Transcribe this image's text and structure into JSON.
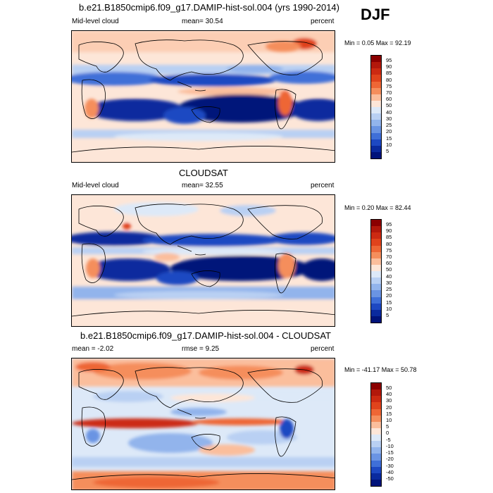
{
  "season": "DJF",
  "panels": [
    {
      "title": "b.e21.B1850cmip6.f09_g17.DAMIP-hist-sol.004 (yrs 1990-2014)",
      "left_label": "Mid-level cloud",
      "stat_label": "mean=  30.54",
      "units": "percent",
      "minmax": "Min =   0.05 Max =  92.19",
      "colorbar_labels": [
        "95",
        "90",
        "85",
        "80",
        "75",
        "70",
        "60",
        "50",
        "40",
        "30",
        "25",
        "20",
        "15",
        "10",
        "5"
      ]
    },
    {
      "title": "CLOUDSAT",
      "left_label": "Mid-level cloud",
      "stat_label": "mean=  32.55",
      "units": "percent",
      "minmax": "Min =   0.20 Max =  82.44",
      "colorbar_labels": [
        "95",
        "90",
        "85",
        "80",
        "75",
        "70",
        "60",
        "50",
        "40",
        "30",
        "25",
        "20",
        "15",
        "10",
        "5"
      ]
    },
    {
      "title": "b.e21.B1850cmip6.f09_g17.DAMIP-hist-sol.004 - CLOUDSAT",
      "left_label": "mean =  -2.02",
      "stat_label": "rmse =   9.25",
      "units": "percent",
      "minmax": "Min = -41.17 Max =  50.78",
      "colorbar_labels": [
        "50",
        "40",
        "30",
        "20",
        "15",
        "10",
        "5",
        "0",
        "-5",
        "-10",
        "-15",
        "-20",
        "-30",
        "-40",
        "-50"
      ]
    }
  ],
  "colors": {
    "cloud_scale": [
      "#8b0000",
      "#b2180b",
      "#cc2a12",
      "#e0431c",
      "#ee6635",
      "#f58e5c",
      "#fbbe9c",
      "#fde6d8",
      "#dde9f8",
      "#b9d0f3",
      "#92b4ec",
      "#6a94e3",
      "#3f6fd8",
      "#1d48c2",
      "#0a2a9e",
      "#00137a"
    ],
    "diff_scale": [
      "#8b0000",
      "#b2180b",
      "#cc2a12",
      "#e0431c",
      "#ee6635",
      "#f58e5c",
      "#fbbe9c",
      "#fde6d8",
      "#dde9f8",
      "#b9d0f3",
      "#92b4ec",
      "#6a94e3",
      "#3f6fd8",
      "#1d48c2",
      "#0a2a9e",
      "#00137a"
    ]
  }
}
